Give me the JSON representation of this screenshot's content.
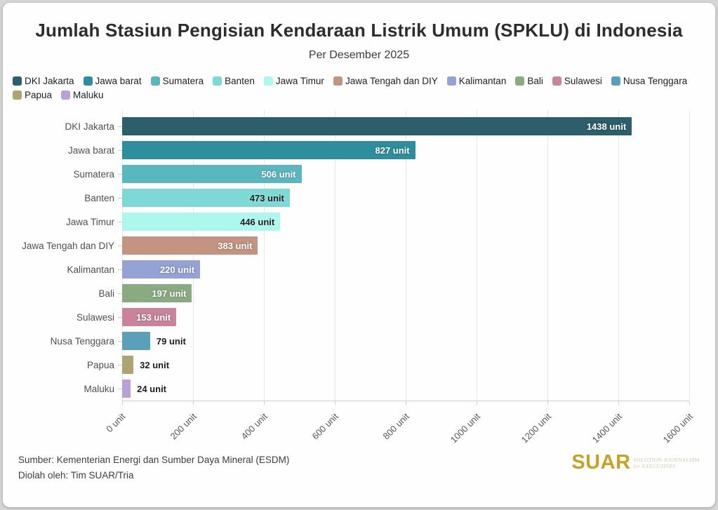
{
  "title": "Jumlah Stasiun Pengisian Kendaraan Listrik Umum (SPKLU) di Indonesia",
  "subtitle": "Per Desember 2025",
  "legend": [
    {
      "label": "DKI Jakarta",
      "color": "#2d5e6b"
    },
    {
      "label": "Jawa barat",
      "color": "#2e8e9e"
    },
    {
      "label": "Sumatera",
      "color": "#5bb7bf"
    },
    {
      "label": "Banten",
      "color": "#7ed9d6"
    },
    {
      "label": "Jawa Timur",
      "color": "#aef7ee"
    },
    {
      "label": "Jawa Tengah dan DIY",
      "color": "#c29481"
    },
    {
      "label": "Kalimantan",
      "color": "#94a3d4"
    },
    {
      "label": "Bali",
      "color": "#8aab82"
    },
    {
      "label": "Sulawesi",
      "color": "#c9849b"
    },
    {
      "label": "Nusa Tenggara",
      "color": "#5b9fba"
    },
    {
      "label": "Papua",
      "color": "#ada373"
    },
    {
      "label": "Maluku",
      "color": "#b9a0d6"
    }
  ],
  "chart_data": {
    "type": "bar",
    "orientation": "horizontal",
    "title": "Jumlah Stasiun Pengisian Kendaraan Listrik Umum (SPKLU) di Indonesia",
    "subtitle": "Per Desember 2025",
    "categories": [
      "DKI Jakarta",
      "Jawa barat",
      "Sumatera",
      "Banten",
      "Jawa Timur",
      "Jawa Tengah dan DIY",
      "Kalimantan",
      "Bali",
      "Sulawesi",
      "Nusa Tenggara",
      "Papua",
      "Maluku"
    ],
    "values": [
      1438,
      827,
      506,
      473,
      446,
      383,
      220,
      197,
      153,
      79,
      32,
      24
    ],
    "value_suffix": " unit",
    "bar_colors": [
      "#2d5e6b",
      "#2e8e9e",
      "#5bb7bf",
      "#7ed9d6",
      "#aef7ee",
      "#c29481",
      "#94a3d4",
      "#8aab82",
      "#c9849b",
      "#5b9fba",
      "#ada373",
      "#b9a0d6"
    ],
    "label_inside": [
      true,
      true,
      true,
      true,
      true,
      true,
      true,
      true,
      true,
      false,
      false,
      false
    ],
    "label_colors": [
      "#ffffff",
      "#ffffff",
      "#ffffff",
      "#1c1c1c",
      "#1c1c1c",
      "#ffffff",
      "#ffffff",
      "#ffffff",
      "#ffffff",
      "#1c1c1c",
      "#1c1c1c",
      "#1c1c1c"
    ],
    "xlim": [
      0,
      1600
    ],
    "x_ticks": [
      0,
      200,
      400,
      600,
      800,
      1000,
      1200,
      1400,
      1600
    ],
    "x_tick_labels": [
      "0 unit",
      "200 unit",
      "400 unit",
      "600 unit",
      "800 unit",
      "1000 unit",
      "1200 unit",
      "1400 unit",
      "1600 unit"
    ],
    "grid": "vertical",
    "legend_position": "top"
  },
  "footer": {
    "source": "Sumber: Kementerian Energi dan Sumber Daya Mineral (ESDM)",
    "credit": "Diolah oleh: Tim SUAR/Tria",
    "logo_word": "SUAR",
    "logo_color": "#c7a229",
    "logo_tagline_line1": "SOLUTION JOURNALISM",
    "logo_tagline_line2": "for EXECUTIVES"
  }
}
